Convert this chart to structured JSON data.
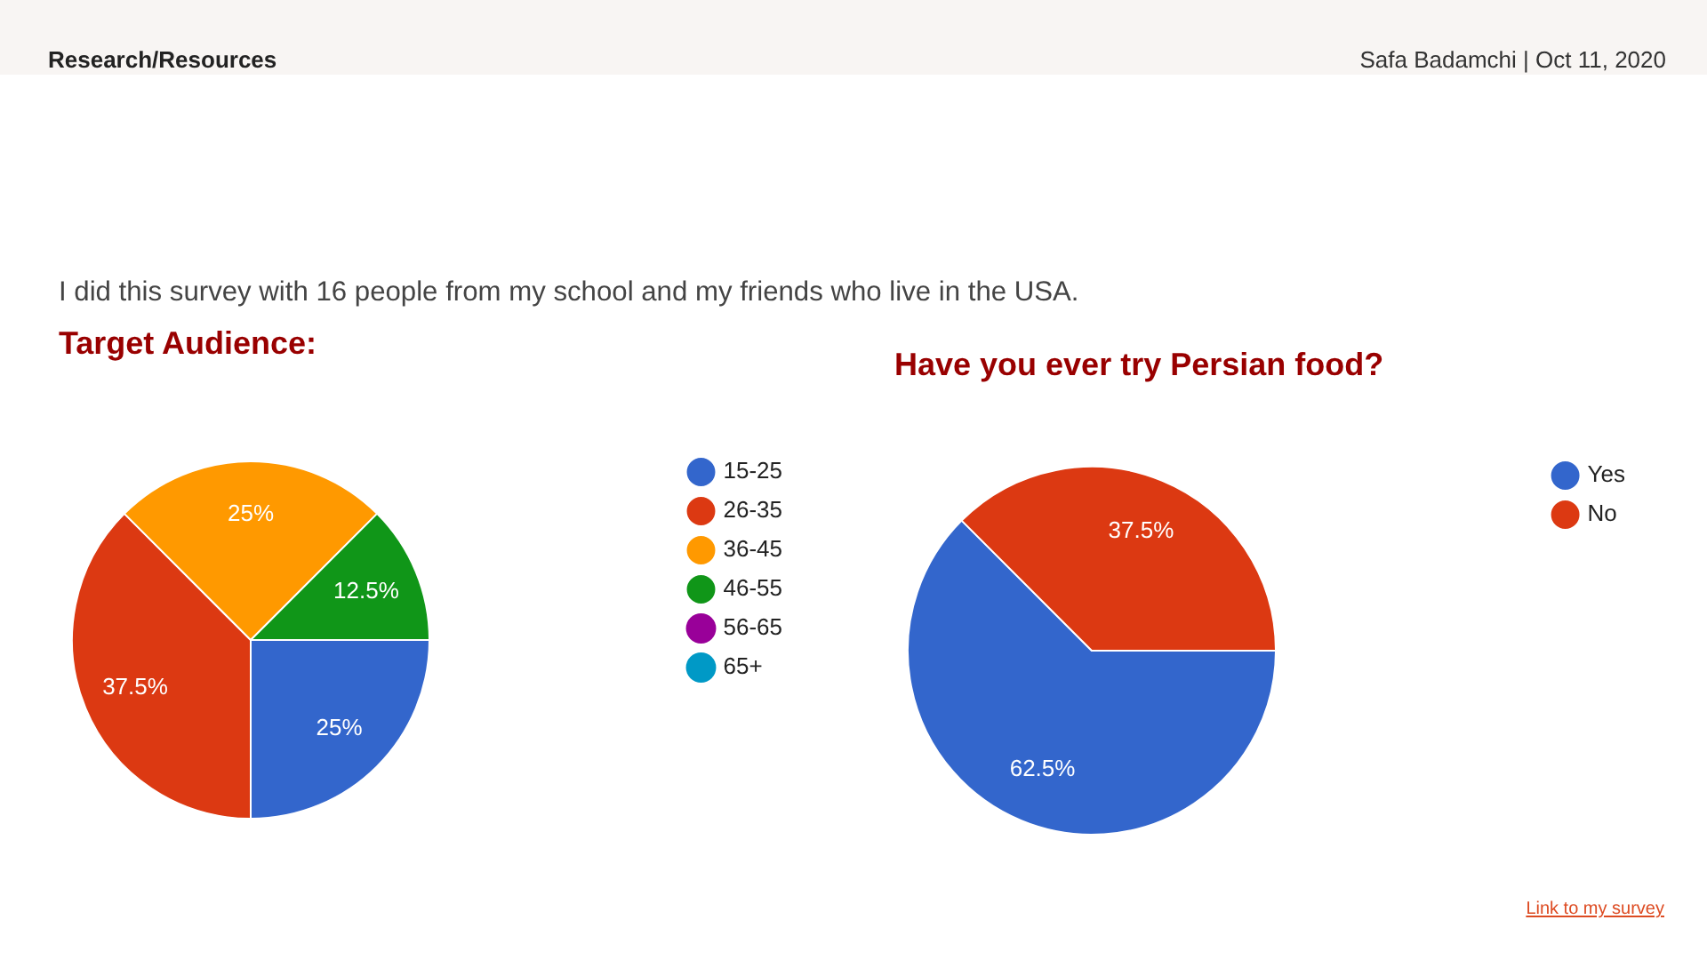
{
  "chart_data": [
    {
      "type": "pie",
      "title": "Target Audience:",
      "categories": [
        "15-25",
        "26-35",
        "36-45",
        "46-55",
        "56-65",
        "65+"
      ],
      "values": [
        25,
        37.5,
        25,
        12.5,
        0,
        0
      ],
      "colors": [
        "#3366cc",
        "#dc3912",
        "#ff9900",
        "#109618",
        "#990099",
        "#0099c6"
      ],
      "value_labels": [
        "25%",
        "37.5%",
        "25%",
        "12.5%",
        null,
        null
      ],
      "legend": "top right",
      "annotations": [
        "Research/Resources",
        "Safa Badamchi | Oct 11, 2020",
        "I did this survey with 16 people from my school and my friends who live in the USA."
      ]
    },
    {
      "type": "pie",
      "title": "Have you ever try Persian food?",
      "categories": [
        "Yes",
        "No"
      ],
      "values": [
        62.5,
        37.5
      ],
      "colors": [
        "#3366cc",
        "#dc3912"
      ],
      "value_labels": [
        "62.5%",
        "37.5%"
      ],
      "legend": "top right",
      "annotations": [
        "Link to my survey"
      ]
    }
  ]
}
